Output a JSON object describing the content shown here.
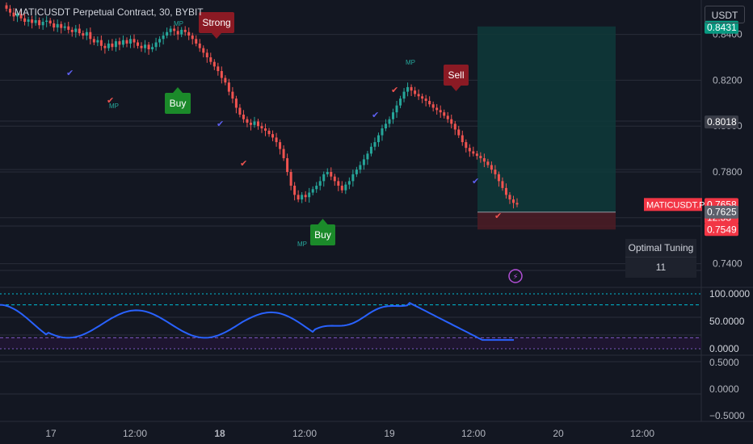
{
  "chart_title": "MATICUSDT Perpetual Contract, 30, BYBIT",
  "currency_button": "USDT",
  "price_axis": {
    "ticks": [
      "0.8400",
      "0.8200",
      "0.8000",
      "0.7800",
      "0.7400"
    ],
    "badges": [
      {
        "text": "0.8431",
        "bg": "#089981",
        "fg": "#ffffff",
        "price": 0.8431
      },
      {
        "text": "0.8018",
        "bg": "#3a3d48",
        "fg": "#ffffff",
        "price": 0.8018
      },
      {
        "text": "0.7658",
        "bg": "#f23645",
        "fg": "#ffffff",
        "price": 0.7658
      },
      {
        "text": "12:53",
        "bg": "#f23645",
        "fg": "#ffffff",
        "price": 0.7658,
        "below": true
      },
      {
        "text": "0.7625",
        "bg": "#5d606b",
        "fg": "#ffffff",
        "price": 0.7625
      },
      {
        "text": "0.7549",
        "bg": "#f23645",
        "fg": "#ffffff",
        "price": 0.7549
      }
    ],
    "symbol_tag": "MATICUSDT.P",
    "range": [
      0.73,
      0.855
    ]
  },
  "oscillator_axis": {
    "ticks": [
      "100.0000",
      "50.0000",
      "0.0000"
    ],
    "range": [
      -5,
      105
    ]
  },
  "lower_axis": {
    "ticks": [
      "0.5000",
      "0.0000",
      "−0.5000"
    ],
    "range": [
      -0.55,
      0.55
    ]
  },
  "time_axis": {
    "labels": [
      "17",
      "12:00",
      "18",
      "12:00",
      "19",
      "12:00",
      "20",
      "12:00"
    ],
    "bold": [
      "18"
    ]
  },
  "optimal_tuning": {
    "label": "Optimal Tuning",
    "value": "11"
  },
  "signals": {
    "strong": "Strong",
    "sell": "Sell",
    "buy1": "Buy",
    "buy2": "Buy",
    "mp": "MP"
  },
  "colors": {
    "bg": "#131722",
    "up": "#26a69a",
    "down": "#ef5350",
    "buy": "#1b8a2a",
    "sell": "#8b1a24",
    "osc": "#2962ff",
    "cyan": "#00bcd4",
    "purple": "#7e57c2"
  },
  "chart_data": {
    "type": "candlestick",
    "candles_close": [
      0.8512,
      0.8495,
      0.8478,
      0.849,
      0.847,
      0.8455,
      0.8465,
      0.845,
      0.8462,
      0.844,
      0.8455,
      0.846,
      0.8448,
      0.843,
      0.8445,
      0.8428,
      0.8435,
      0.842,
      0.841,
      0.8425,
      0.8405,
      0.8395,
      0.841,
      0.838,
      0.8365,
      0.8375,
      0.835,
      0.834,
      0.836,
      0.8345,
      0.837,
      0.8355,
      0.8375,
      0.836,
      0.838,
      0.8365,
      0.835,
      0.834,
      0.8355,
      0.8335,
      0.8345,
      0.8365,
      0.838,
      0.8395,
      0.841,
      0.8425,
      0.8415,
      0.84,
      0.842,
      0.841,
      0.8395,
      0.838,
      0.836,
      0.834,
      0.832,
      0.83,
      0.828,
      0.826,
      0.824,
      0.821,
      0.819,
      0.815,
      0.812,
      0.808,
      0.805,
      0.803,
      0.8015,
      0.8005,
      0.802,
      0.8,
      0.799,
      0.798,
      0.7965,
      0.795,
      0.793,
      0.79,
      0.786,
      0.78,
      0.774,
      0.77,
      0.768,
      0.77,
      0.769,
      0.771,
      0.7725,
      0.774,
      0.776,
      0.779,
      0.78,
      0.778,
      0.776,
      0.774,
      0.772,
      0.7745,
      0.776,
      0.779,
      0.781,
      0.783,
      0.7855,
      0.788,
      0.791,
      0.793,
      0.796,
      0.799,
      0.801,
      0.803,
      0.806,
      0.809,
      0.812,
      0.815,
      0.817,
      0.8155,
      0.814,
      0.813,
      0.812,
      0.811,
      0.8095,
      0.808,
      0.807,
      0.806,
      0.8045,
      0.803,
      0.801,
      0.7985,
      0.796,
      0.793,
      0.7905,
      0.789,
      0.788,
      0.787,
      0.786,
      0.7845,
      0.783,
      0.781,
      0.779,
      0.776,
      0.773,
      0.77,
      0.768,
      0.7665,
      0.7658
    ],
    "y_range": [
      0.73,
      0.855
    ],
    "position_box": {
      "entry": 0.7625,
      "take_profit": 0.8431,
      "stop": 0.7549
    },
    "oscillator": {
      "series": "wave",
      "range": [
        0,
        100
      ],
      "levels": [
        100,
        80,
        20,
        0
      ]
    },
    "x_labels": [
      "17",
      "12:00",
      "18",
      "12:00",
      "19",
      "12:00",
      "20",
      "12:00"
    ]
  }
}
